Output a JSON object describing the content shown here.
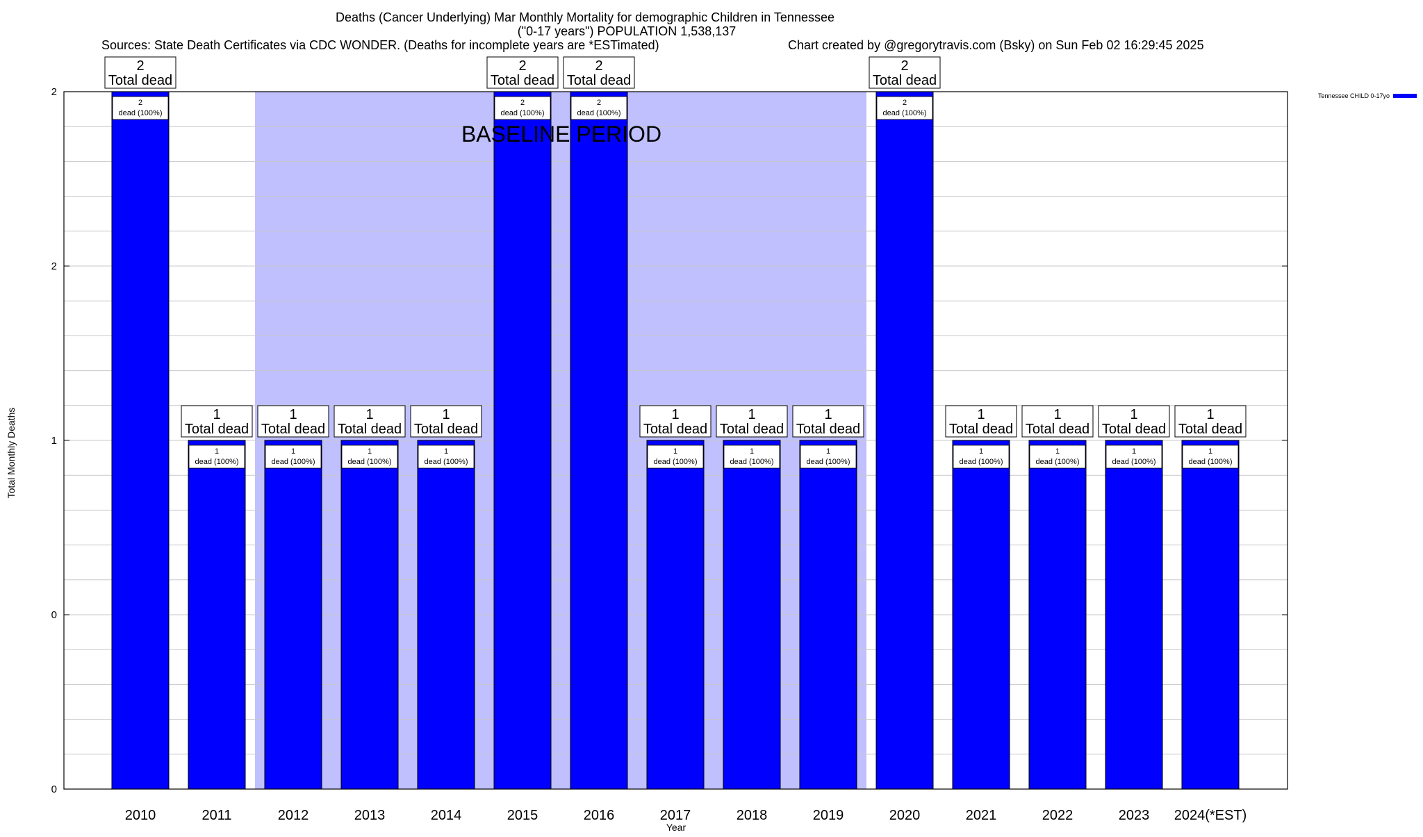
{
  "chart_data": {
    "type": "bar",
    "title": "Deaths (Cancer Underlying) Mar Monthly Mortality for demographic Children in Tennessee",
    "subtitle": "(\"0-17 years\") POPULATION 1,538,137",
    "sources": "Sources: State Death Certificates via CDC WONDER. (Deaths for incomplete years are *ESTimated)",
    "credit": "Chart created by @gregorytravis.com (Bsky) on Sun Feb 02 16:29:45 2025",
    "xlabel": "Year",
    "ylabel": "Total Monthly Deaths",
    "ylim": [
      0,
      2
    ],
    "yticks": [
      {
        "value": 0,
        "label": "0"
      },
      {
        "value": 0.5,
        "label": "0"
      },
      {
        "value": 1,
        "label": "1"
      },
      {
        "value": 1.5,
        "label": "2"
      },
      {
        "value": 2,
        "label": "2"
      }
    ],
    "grid": true,
    "legend_position": "top-right",
    "baseline_period": {
      "label": "BASELINE PERIOD",
      "start": "2012",
      "end": "2019",
      "color": "#c0c0ff"
    },
    "total_label_suffix": "Total dead",
    "dead_label_suffix": "dead (100%)",
    "categories": [
      "2010",
      "2011",
      "2012",
      "2013",
      "2014",
      "2015",
      "2016",
      "2017",
      "2018",
      "2019",
      "2020",
      "2021",
      "2022",
      "2023",
      "2024(*EST)"
    ],
    "series": [
      {
        "name": "Tennessee CHILD 0-17yo",
        "color": "#0000ff",
        "values": [
          2,
          1,
          1,
          1,
          1,
          2,
          2,
          1,
          1,
          1,
          2,
          1,
          1,
          1,
          1
        ]
      }
    ]
  }
}
